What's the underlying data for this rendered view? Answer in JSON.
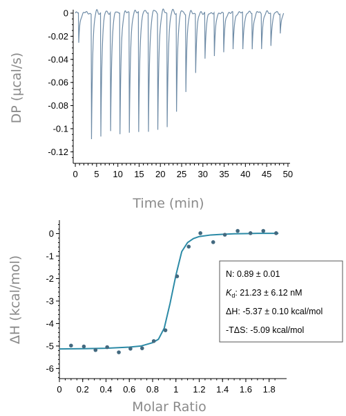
{
  "chart_data": [
    {
      "type": "line",
      "ylabel": "DP (µcal/s)",
      "xlabel": "Time (min)",
      "xlim": [
        -0.5,
        50.5
      ],
      "ylim": [
        -0.13,
        0.003
      ],
      "x_ticks": [
        "0",
        "5",
        "10",
        "15",
        "20",
        "25",
        "30",
        "35",
        "40",
        "45",
        "50"
      ],
      "x_tick_values": [
        0,
        5,
        10,
        15,
        20,
        25,
        30,
        35,
        40,
        45,
        50
      ],
      "y_ticks": [
        "0",
        "-0.02",
        "-0.04",
        "-0.06",
        "-0.08",
        "-0.1",
        "-0.12"
      ],
      "y_tick_values": [
        0,
        -0.02,
        -0.04,
        -0.06,
        -0.08,
        -0.1,
        -0.12
      ],
      "line_color": "#6e8ba6",
      "baseline": 0,
      "injections": {
        "time": [
          0.8,
          3.8,
          6.0,
          8.3,
          10.5,
          12.7,
          14.9,
          17.2,
          19.4,
          21.6,
          23.8,
          26.0,
          28.3,
          30.5,
          32.7,
          34.9,
          37.1,
          39.4,
          41.6,
          43.8,
          46.0,
          48.2
        ],
        "peak": [
          -0.026,
          -0.108,
          -0.107,
          -0.103,
          -0.105,
          -0.104,
          -0.104,
          -0.103,
          -0.1,
          -0.098,
          -0.085,
          -0.067,
          -0.051,
          -0.04,
          -0.038,
          -0.034,
          -0.032,
          -0.032,
          -0.031,
          -0.03,
          -0.028,
          -0.017
        ]
      }
    },
    {
      "type": "scatter",
      "ylabel": "ΔH (kcal/mol)",
      "xlabel": "Molar Ratio",
      "xlim": [
        0,
        1.95
      ],
      "ylim": [
        -6.45,
        0.6
      ],
      "x_ticks": [
        "0",
        "0.2",
        "0.4",
        "0.6",
        "0.8",
        "1",
        "1.2",
        "1.4",
        "1.6",
        "1.8"
      ],
      "x_tick_values": [
        0,
        0.2,
        0.4,
        0.6,
        0.8,
        1.0,
        1.2,
        1.4,
        1.6,
        1.8
      ],
      "y_ticks": [
        "0",
        "-1",
        "-2",
        "-3",
        "-4",
        "-5",
        "-6"
      ],
      "y_tick_values": [
        0,
        -1,
        -2,
        -3,
        -4,
        -5,
        -6
      ],
      "point_color": "#43697f",
      "fit_color": "#2b8aa6",
      "points": {
        "x": [
          0.1,
          0.21,
          0.31,
          0.41,
          0.51,
          0.61,
          0.71,
          0.81,
          0.91,
          1.01,
          1.11,
          1.21,
          1.32,
          1.42,
          1.53,
          1.64,
          1.75,
          1.86
        ],
        "y": [
          -4.98,
          -5.02,
          -5.18,
          -5.05,
          -5.28,
          -5.12,
          -5.1,
          -4.78,
          -4.3,
          -1.9,
          -0.58,
          0.02,
          -0.38,
          -0.05,
          0.12,
          0.02,
          0.12,
          0.02
        ]
      },
      "fit": {
        "x": [
          0.0,
          0.2,
          0.4,
          0.6,
          0.7,
          0.8,
          0.85,
          0.9,
          0.95,
          1.0,
          1.05,
          1.1,
          1.15,
          1.2,
          1.3,
          1.4,
          1.5,
          1.6,
          1.7,
          1.88
        ],
        "y": [
          -5.13,
          -5.12,
          -5.1,
          -5.05,
          -5.0,
          -4.85,
          -4.7,
          -4.2,
          -3.1,
          -1.85,
          -0.8,
          -0.4,
          -0.22,
          -0.13,
          -0.06,
          -0.03,
          -0.01,
          0.0,
          0.01,
          0.01
        ]
      },
      "annotation": {
        "n_line": "N: 0.89 ± 0.01",
        "kd_symbol": "K",
        "kd_sub": "d",
        "kd_value": ": 21.23 ± 6.12 nM",
        "dh_line": "ΔH: -5.37 ± 0.10 kcal/mol",
        "tds_line": "-TΔS: -5.09 kcal/mol"
      }
    }
  ]
}
